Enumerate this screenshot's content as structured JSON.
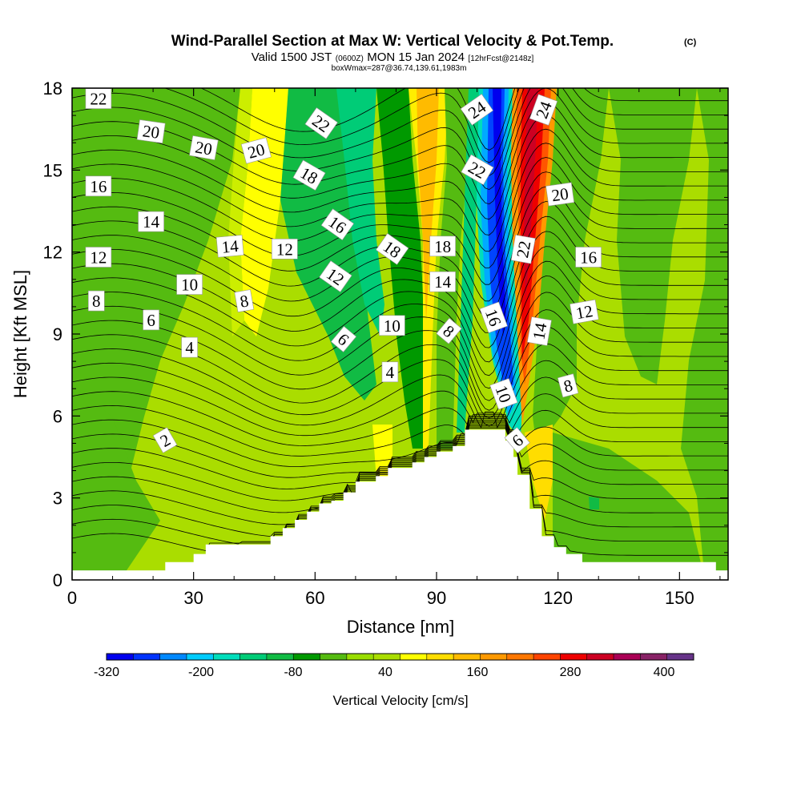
{
  "chart_data": {
    "type": "heatmap",
    "title": "Wind-Parallel Section at Max W: Vertical Velocity & Pot.Temp.",
    "title_mark": "(C)",
    "subtitle_prefix": "Valid 1500 JST",
    "subtitle_small1": "(0600Z)",
    "subtitle_main": "MON 15 Jan 2024",
    "subtitle_small2": "[12hrFcst@2148z]",
    "subtitle2": "boxWmax=287@36.74,139.61,1983m",
    "xlabel": "Distance [nm]",
    "ylabel": "Height [Kft MSL]",
    "xlim": [
      0,
      162
    ],
    "ylim": [
      0,
      18
    ],
    "x_ticks": [
      "0",
      "30",
      "60",
      "90",
      "120",
      "150"
    ],
    "y_ticks": [
      "0",
      "3",
      "6",
      "9",
      "12",
      "15",
      "18"
    ],
    "colorbar": {
      "label": "Vertical Velocity [cm/s]",
      "tick_labels": [
        "-320",
        "-200",
        "-80",
        "40",
        "160",
        "280",
        "400"
      ],
      "colors": [
        "#0000ee",
        "#0033ff",
        "#0088ff",
        "#00ccff",
        "#00ddbb",
        "#00cc77",
        "#11bb44",
        "#009900",
        "#55bb11",
        "#99dd00",
        "#aadd00",
        "#ffff00",
        "#ffdd00",
        "#ffbb00",
        "#ff9900",
        "#ff7700",
        "#ff4400",
        "#ee0000",
        "#cc0022",
        "#aa0055",
        "#882266",
        "#663388"
      ]
    },
    "terrain_profile": [
      [
        0,
        0.35
      ],
      [
        23,
        0.35
      ],
      [
        23,
        0.65
      ],
      [
        30,
        0.65
      ],
      [
        30,
        0.95
      ],
      [
        33,
        0.95
      ],
      [
        33,
        1.3
      ],
      [
        49,
        1.3
      ],
      [
        49,
        1.6
      ],
      [
        52,
        1.6
      ],
      [
        52,
        1.9
      ],
      [
        55,
        1.9
      ],
      [
        55,
        2.2
      ],
      [
        58,
        2.2
      ],
      [
        58,
        2.5
      ],
      [
        61,
        2.5
      ],
      [
        61,
        2.8
      ],
      [
        64,
        2.8
      ],
      [
        64,
        2.9
      ],
      [
        67,
        2.9
      ],
      [
        67,
        3.2
      ],
      [
        70,
        3.2
      ],
      [
        70,
        3.6
      ],
      [
        75,
        3.6
      ],
      [
        75,
        3.8
      ],
      [
        78,
        3.8
      ],
      [
        78,
        4.1
      ],
      [
        84,
        4.1
      ],
      [
        84,
        4.3
      ],
      [
        87,
        4.3
      ],
      [
        87,
        4.5
      ],
      [
        90,
        4.5
      ],
      [
        90,
        4.7
      ],
      [
        94,
        4.7
      ],
      [
        94,
        4.9
      ],
      [
        97,
        4.9
      ],
      [
        97,
        5.5
      ],
      [
        107,
        5.5
      ],
      [
        107,
        5.1
      ],
      [
        109,
        5.1
      ],
      [
        109,
        4.5
      ],
      [
        110,
        4.5
      ],
      [
        110,
        3.85
      ],
      [
        113,
        3.85
      ],
      [
        113,
        2.6
      ],
      [
        116,
        2.6
      ],
      [
        116,
        1.6
      ],
      [
        119,
        1.6
      ],
      [
        119,
        1.2
      ],
      [
        122,
        1.2
      ],
      [
        122,
        0.95
      ],
      [
        126,
        0.95
      ],
      [
        126,
        0.65
      ],
      [
        159,
        0.65
      ],
      [
        159,
        0.35
      ],
      [
        162,
        0.35
      ]
    ],
    "contour_labels": [
      {
        "text": "22",
        "x": 6.5,
        "y": 17.6,
        "rot": 0
      },
      {
        "text": "20",
        "x": 19.5,
        "y": 16.4,
        "rot": 8
      },
      {
        "text": "20",
        "x": 32.5,
        "y": 15.8,
        "rot": 10
      },
      {
        "text": "20",
        "x": 45.5,
        "y": 15.7,
        "rot": -15
      },
      {
        "text": "22",
        "x": 61.5,
        "y": 16.7,
        "rot": 35
      },
      {
        "text": "24",
        "x": 100,
        "y": 17.2,
        "rot": -35
      },
      {
        "text": "24",
        "x": 116.5,
        "y": 17.2,
        "rot": -70
      },
      {
        "text": "16",
        "x": 6.5,
        "y": 14.4,
        "rot": 0
      },
      {
        "text": "18",
        "x": 58.5,
        "y": 14.8,
        "rot": 30
      },
      {
        "text": "22",
        "x": 100,
        "y": 15,
        "rot": 30
      },
      {
        "text": "20",
        "x": 120.5,
        "y": 14.1,
        "rot": -8
      },
      {
        "text": "14",
        "x": 19.5,
        "y": 13.1,
        "rot": 0
      },
      {
        "text": "14",
        "x": 39,
        "y": 12.2,
        "rot": -5
      },
      {
        "text": "12",
        "x": 52.5,
        "y": 12.1,
        "rot": 0
      },
      {
        "text": "16",
        "x": 65.5,
        "y": 13,
        "rot": 35
      },
      {
        "text": "18",
        "x": 79,
        "y": 12.1,
        "rot": 35
      },
      {
        "text": "18",
        "x": 91.5,
        "y": 12.2,
        "rot": 0
      },
      {
        "text": "22",
        "x": 111.5,
        "y": 12.1,
        "rot": -80
      },
      {
        "text": "16",
        "x": 127.5,
        "y": 11.8,
        "rot": 0
      },
      {
        "text": "12",
        "x": 6.5,
        "y": 11.8,
        "rot": 0
      },
      {
        "text": "12",
        "x": 65,
        "y": 11.1,
        "rot": 35
      },
      {
        "text": "14",
        "x": 91.5,
        "y": 10.9,
        "rot": 0
      },
      {
        "text": "10",
        "x": 29,
        "y": 10.8,
        "rot": 0
      },
      {
        "text": "8",
        "x": 6,
        "y": 10.2,
        "rot": 0
      },
      {
        "text": "8",
        "x": 42.5,
        "y": 10.2,
        "rot": -10
      },
      {
        "text": "16",
        "x": 104,
        "y": 9.6,
        "rot": 70
      },
      {
        "text": "12",
        "x": 126.5,
        "y": 9.8,
        "rot": -10
      },
      {
        "text": "6",
        "x": 19.5,
        "y": 9.5,
        "rot": 0
      },
      {
        "text": "10",
        "x": 79,
        "y": 9.3,
        "rot": 0
      },
      {
        "text": "8",
        "x": 93,
        "y": 9.1,
        "rot": 40
      },
      {
        "text": "14",
        "x": 115.5,
        "y": 9.1,
        "rot": -80
      },
      {
        "text": "6",
        "x": 67,
        "y": 8.8,
        "rot": 40
      },
      {
        "text": "4",
        "x": 29,
        "y": 8.5,
        "rot": 0
      },
      {
        "text": "4",
        "x": 78.5,
        "y": 7.6,
        "rot": 0
      },
      {
        "text": "8",
        "x": 122.5,
        "y": 7.1,
        "rot": -15
      },
      {
        "text": "10",
        "x": 106.5,
        "y": 6.8,
        "rot": 70
      },
      {
        "text": "2",
        "x": 23,
        "y": 5.1,
        "rot": -30
      },
      {
        "text": "6",
        "x": 110,
        "y": 5.1,
        "rot": -40
      }
    ]
  }
}
